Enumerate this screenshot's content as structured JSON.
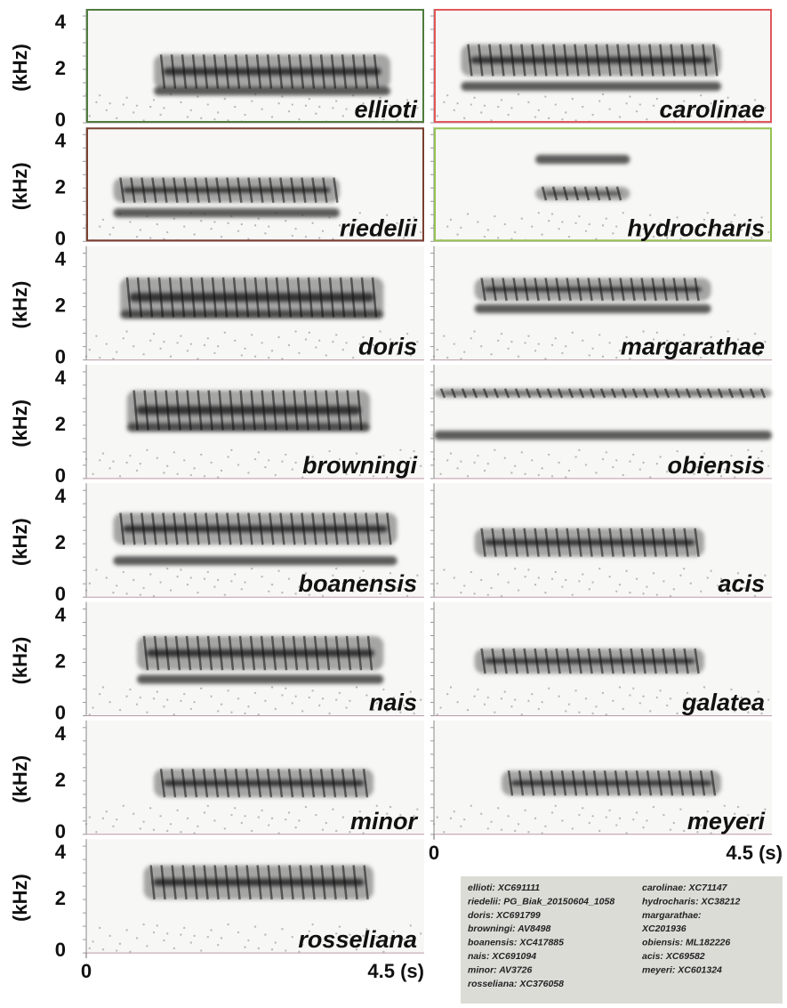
{
  "y_axis": {
    "label": "(kHz)",
    "ticks": [
      "4",
      "2",
      "0"
    ]
  },
  "x_axis": {
    "start": "0",
    "end": "4.5 (s)"
  },
  "left_panels": [
    {
      "species": "ellioti",
      "frame": "#4f7d3c"
    },
    {
      "species": "riedelii",
      "frame": "#7b3f2e"
    },
    {
      "species": "doris"
    },
    {
      "species": "browningi"
    },
    {
      "species": "boanensis"
    },
    {
      "species": "nais"
    },
    {
      "species": "minor"
    },
    {
      "species": "rosseliana"
    }
  ],
  "right_panels": [
    {
      "species": "carolinae",
      "frame": "#e2575a"
    },
    {
      "species": "hydrocharis",
      "frame": "#93c351"
    },
    {
      "species": "margarathae"
    },
    {
      "species": "obiensis"
    },
    {
      "species": "acis"
    },
    {
      "species": "galatea"
    },
    {
      "species": "meyeri"
    }
  ],
  "legend": {
    "left": [
      "ellioti: XC691111",
      "riedelii: PG_Biak_20150604_1058",
      "doris: XC691799",
      "browningi: AV8498",
      "boanensis: XC417885",
      "nais: XC691094",
      "minor: AV3726",
      "rosseliana: XC376058"
    ],
    "right": [
      "carolinae: XC71147",
      "hydrocharis: XC38212",
      "margarathae:",
      "XC201936",
      "obiensis: ML182226",
      "acis: XC69582",
      "meyeri: XC601324"
    ]
  }
}
